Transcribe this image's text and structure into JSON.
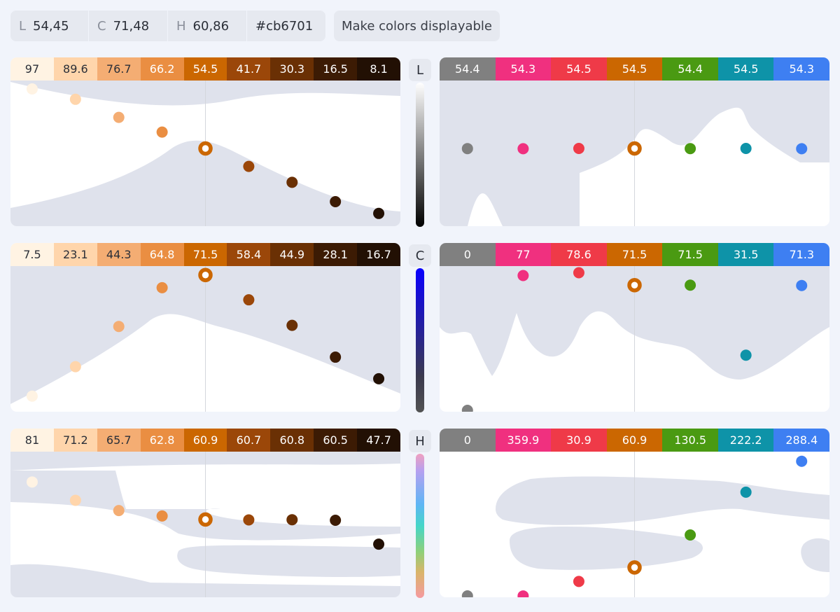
{
  "readouts": {
    "l_label": "L",
    "l_value": "54,45",
    "c_label": "C",
    "c_value": "71,48",
    "h_label": "H",
    "h_value": "60,86",
    "hex": "#cb6701"
  },
  "button_label": "Make colors displayable",
  "axes": {
    "l": "L",
    "c": "C",
    "h": "H"
  },
  "selected_color": "#cb6701",
  "scale": {
    "colors": [
      "#fff3e3",
      "#ffd5ab",
      "#f4ad73",
      "#ea8e42",
      "#cb6701",
      "#9b4709",
      "#6a3004",
      "#3c1b04",
      "#221004"
    ],
    "text_colors": [
      "#2b2f38",
      "#2b2f38",
      "#2b2f38",
      "#ffffff",
      "#ffffff",
      "#ffffff",
      "#ffffff",
      "#ffffff",
      "#ffffff"
    ],
    "selected_index": 4,
    "l": [
      "97",
      "89.6",
      "76.7",
      "66.2",
      "54.5",
      "41.7",
      "30.3",
      "16.5",
      "8.1"
    ],
    "c": [
      "7.5",
      "23.1",
      "44.3",
      "64.8",
      "71.5",
      "58.4",
      "44.9",
      "28.1",
      "16.7"
    ],
    "h": [
      "81",
      "71.2",
      "65.7",
      "62.8",
      "60.9",
      "60.7",
      "60.8",
      "60.5",
      "47.7"
    ]
  },
  "palette": {
    "colors": [
      "#808080",
      "#f0307f",
      "#ef3a48",
      "#cb6701",
      "#4a9a12",
      "#0e93a8",
      "#3e7ff2"
    ],
    "selected_index": 3,
    "l": [
      "54.4",
      "54.3",
      "54.5",
      "54.5",
      "54.4",
      "54.5",
      "54.3"
    ],
    "c": [
      "0",
      "77",
      "78.6",
      "71.5",
      "71.5",
      "31.5",
      "71.3"
    ],
    "h": [
      "0",
      "359.9",
      "30.9",
      "60.9",
      "130.5",
      "222.2",
      "288.4"
    ]
  }
}
